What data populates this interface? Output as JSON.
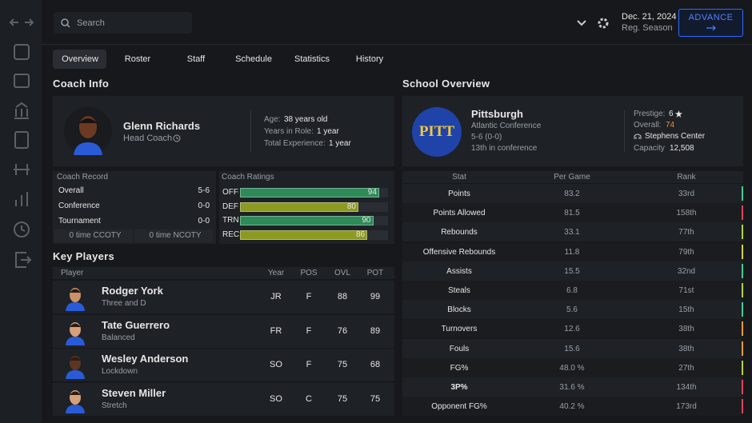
{
  "search_placeholder": "Search",
  "header": {
    "date": "Dec. 21, 2024",
    "season": "Reg. Season",
    "advance": "ADVANCE"
  },
  "tabs": [
    "Overview",
    "Roster",
    "Staff",
    "Schedule",
    "Statistics",
    "History"
  ],
  "coach_info": {
    "title": "Coach Info",
    "name": "Glenn Richards",
    "role": "Head Coach",
    "details": [
      {
        "label": "Age:",
        "value": "38 years old"
      },
      {
        "label": "Years in Role:",
        "value": "1 year"
      },
      {
        "label": "Total Experience:",
        "value": "1 year"
      }
    ]
  },
  "coach_record": {
    "title": "Coach Record",
    "rows": [
      [
        "Overall",
        "5-6"
      ],
      [
        "Conference",
        "0-0"
      ],
      [
        "Tournament",
        "0-0"
      ]
    ],
    "awards": [
      "0 time CCOTY",
      "0 time NCOTY"
    ]
  },
  "coach_ratings": {
    "title": "Coach Ratings",
    "rows": [
      {
        "label": "OFF",
        "value": 94,
        "color": "#2f8a5a"
      },
      {
        "label": "DEF",
        "value": 80,
        "color": "#8c9a22"
      },
      {
        "label": "TRN",
        "value": 90,
        "color": "#2f8a5a"
      },
      {
        "label": "REC",
        "value": 86,
        "color": "#8c9a22"
      }
    ]
  },
  "key_players": {
    "title": "Key Players",
    "headers": [
      "Player",
      "Year",
      "POS",
      "OVL",
      "POT"
    ],
    "rows": [
      {
        "name": "Rodger York",
        "archetype": "Three and D",
        "year": "JR",
        "pos": "F",
        "ovl": 88,
        "pot": 99
      },
      {
        "name": "Tate Guerrero",
        "archetype": "Balanced",
        "year": "FR",
        "pos": "F",
        "ovl": 76,
        "pot": 89
      },
      {
        "name": "Wesley Anderson",
        "archetype": "Lockdown",
        "year": "SO",
        "pos": "F",
        "ovl": 75,
        "pot": 68
      },
      {
        "name": "Steven Miller",
        "archetype": "Stretch",
        "year": "SO",
        "pos": "C",
        "ovl": 75,
        "pot": 75
      }
    ]
  },
  "school": {
    "title": "School Overview",
    "logo": "PITT",
    "name": "Pittsburgh",
    "conference": "Atlantic Conference",
    "record": "5-6 (0-0)",
    "standing": "13th in conference",
    "prestige_label": "Prestige:",
    "prestige": 6,
    "overall_label": "Overall:",
    "overall": 74,
    "arena": "Stephens Center",
    "capacity_label": "Capacity",
    "capacity": "12,508"
  },
  "stats": {
    "headers": [
      "Stat",
      "Per Game",
      "Rank"
    ],
    "rows": [
      {
        "stat": "Points",
        "per_game": "83.2",
        "rank": "33rd",
        "color": "#3ecf8e"
      },
      {
        "stat": "Points Allowed",
        "per_game": "81.5",
        "rank": "158th",
        "color": "#e0445a"
      },
      {
        "stat": "Rebounds",
        "per_game": "33.1",
        "rank": "77th",
        "color": "#b5d334"
      },
      {
        "stat": "Offensive Rebounds",
        "per_game": "11.8",
        "rank": "79th",
        "color": "#d9d03a"
      },
      {
        "stat": "Assists",
        "per_game": "15.5",
        "rank": "32nd",
        "color": "#3ecf8e"
      },
      {
        "stat": "Steals",
        "per_game": "6.8",
        "rank": "71st",
        "color": "#b5d334"
      },
      {
        "stat": "Blocks",
        "per_game": "5.6",
        "rank": "15th",
        "color": "#3ecf8e"
      },
      {
        "stat": "Turnovers",
        "per_game": "12.6",
        "rank": "38th",
        "color": "#e89a3a"
      },
      {
        "stat": "Fouls",
        "per_game": "15.6",
        "rank": "38th",
        "color": "#e89a3a"
      },
      {
        "stat": "FG%",
        "per_game": "48.0 %",
        "rank": "27th",
        "color": "#b5d334"
      },
      {
        "stat": "3P%",
        "per_game": "31.6 %",
        "rank": "134th",
        "color": "#e0445a"
      },
      {
        "stat": "Opponent FG%",
        "per_game": "40.2 %",
        "rank": "173rd",
        "color": "#e0445a"
      }
    ]
  }
}
